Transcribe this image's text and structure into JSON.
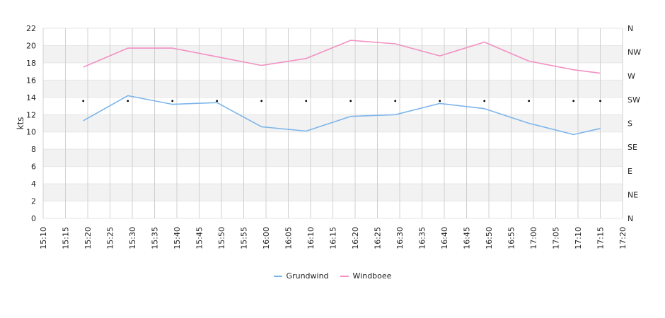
{
  "chart_data": {
    "type": "line",
    "ylabel": "kts",
    "ylim": [
      0,
      22
    ],
    "y_ticks": [
      "0",
      "2",
      "4",
      "6",
      "8",
      "10",
      "12",
      "14",
      "16",
      "18",
      "20",
      "22"
    ],
    "x_ticks": [
      "15:10",
      "15:15",
      "15:20",
      "15:25",
      "15:30",
      "15:35",
      "15:40",
      "15:45",
      "15:50",
      "15:55",
      "16:00",
      "16:05",
      "16:10",
      "16:15",
      "16:20",
      "16:25",
      "16:30",
      "16:35",
      "16:40",
      "16:45",
      "16:50",
      "16:55",
      "17:00",
      "17:05",
      "17:10",
      "17:15",
      "17:20"
    ],
    "x_range": [
      "15:10",
      "17:20"
    ],
    "x": [
      "15:19",
      "15:29",
      "15:39",
      "15:49",
      "15:59",
      "16:09",
      "16:19",
      "16:29",
      "16:39",
      "16:49",
      "16:59",
      "17:09",
      "17:15"
    ],
    "series": [
      {
        "name": "Grundwind",
        "color": "#7cb5ec",
        "values": [
          11.3,
          14.2,
          13.2,
          13.4,
          10.6,
          10.1,
          11.8,
          12.0,
          13.3,
          12.7,
          11.0,
          9.7,
          10.4
        ]
      },
      {
        "name": "Windboee",
        "color": "#f191c2",
        "values": [
          17.5,
          19.7,
          19.7,
          18.7,
          17.7,
          18.5,
          20.6,
          20.2,
          18.8,
          20.4,
          18.2,
          17.2,
          16.8
        ]
      }
    ],
    "direction_axis": {
      "labels": [
        "N",
        "NE",
        "E",
        "SE",
        "S",
        "SW",
        "W",
        "NW",
        "N"
      ],
      "markers_x": [
        "15:19",
        "15:29",
        "15:39",
        "15:49",
        "15:59",
        "16:09",
        "16:19",
        "16:29",
        "16:39",
        "16:49",
        "16:59",
        "17:09",
        "17:15"
      ],
      "markers_value": "SW"
    },
    "grid": true,
    "band_color": "#f2f2f2",
    "legend_position": "bottom-center"
  }
}
